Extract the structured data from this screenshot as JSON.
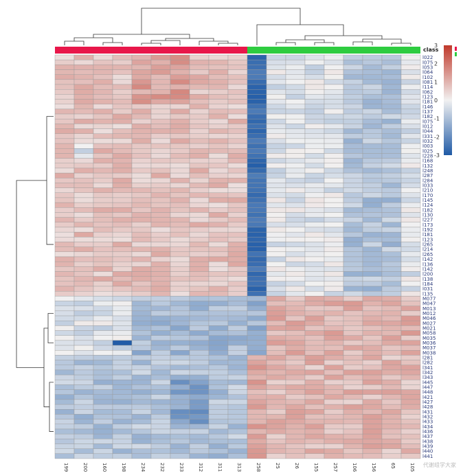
{
  "chart_data": {
    "type": "heatmap",
    "legend_title": "class",
    "color_scale": {
      "range": [
        -3,
        3
      ],
      "ticks": [
        3,
        2,
        1,
        0,
        -1,
        -2,
        -3
      ],
      "low_color": "#1f5aa6",
      "mid_color": "#f1f1f1",
      "high_color": "#c0392b"
    },
    "class_colors": {
      "group_a": "#e8174a",
      "group_b": "#2ecc40"
    },
    "columns": [
      "199",
      "200",
      "160",
      "198",
      "234",
      "232",
      "233",
      "312",
      "311",
      "313",
      "258",
      "25",
      "26",
      "155",
      "257",
      "106",
      "156",
      "65",
      "105"
    ],
    "column_classes": [
      "group_a",
      "group_a",
      "group_a",
      "group_a",
      "group_a",
      "group_a",
      "group_a",
      "group_a",
      "group_a",
      "group_a",
      "group_b",
      "group_b",
      "group_b",
      "group_b",
      "group_b",
      "group_b",
      "group_b",
      "group_b",
      "group_b"
    ],
    "rows": [
      "l022",
      "l075",
      "l053",
      "l064",
      "l102",
      "l081",
      "l114",
      "l062",
      "l123",
      "l181",
      "l146",
      "l137",
      "l182",
      "l075",
      "l012",
      "l044",
      "l331",
      "l032",
      "l003",
      "l025",
      "l228",
      "l168",
      "l132",
      "l248",
      "l287",
      "l284",
      "l033",
      "l210",
      "l170",
      "l145",
      "l124",
      "l182",
      "l130",
      "l227",
      "l173",
      "l192",
      "l181",
      "l123",
      "l265",
      "l214",
      "l265",
      "l142",
      "l136",
      "l142",
      "l200",
      "l138",
      "l184",
      "l031",
      "l135",
      "M077",
      "M047",
      "M013",
      "M012",
      "M046",
      "M027",
      "M021",
      "M058",
      "M035",
      "M036",
      "M037",
      "M038",
      "l281",
      "l282",
      "l341",
      "l342",
      "l343",
      "l445",
      "l447",
      "l448",
      "l421",
      "l427",
      "l428",
      "l431",
      "l432",
      "l433",
      "l434",
      "l436",
      "l437",
      "l438",
      "l439",
      "l440",
      "l441"
    ],
    "values": []
  },
  "watermark": "代谢组学大家"
}
